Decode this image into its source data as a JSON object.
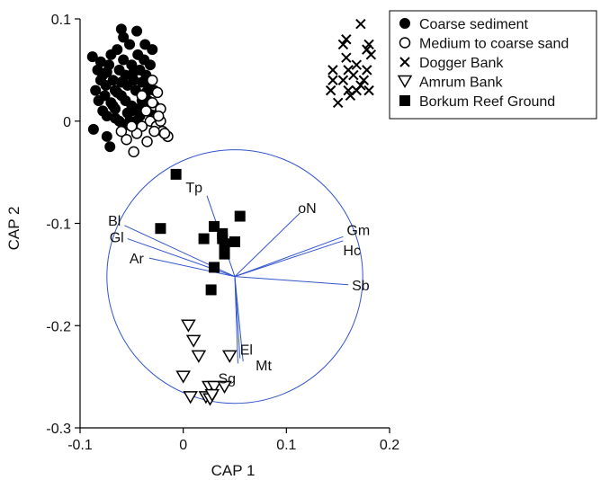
{
  "chart_data": {
    "type": "scatter",
    "xlabel": "CAP 1",
    "ylabel": "CAP 2",
    "xlim": [
      -0.1,
      0.2
    ],
    "ylim": [
      -0.3,
      0.1
    ],
    "x_ticks": [
      -0.1,
      0,
      0.1,
      0.2
    ],
    "x_tick_labels": [
      "-0.1",
      "0",
      "0.1",
      "0.2"
    ],
    "y_ticks": [
      -0.3,
      -0.2,
      -0.1,
      0,
      0.1
    ],
    "y_tick_labels": [
      "-0.3",
      "-0.2",
      "-0.1",
      "0",
      "0.1"
    ],
    "grid": false,
    "legend_position": "top-right",
    "series": [
      {
        "name": "Coarse sediment",
        "marker": "filled-circle",
        "color": "#000000",
        "points": [
          [
            -0.088,
            0.063
          ],
          [
            -0.083,
            0.05
          ],
          [
            -0.08,
            0.058
          ],
          [
            -0.078,
            0.045
          ],
          [
            -0.075,
            0.035
          ],
          [
            -0.072,
            0.055
          ],
          [
            -0.07,
            0.065
          ],
          [
            -0.068,
            0.04
          ],
          [
            -0.066,
            0.03
          ],
          [
            -0.064,
            0.07
          ],
          [
            -0.062,
            0.05
          ],
          [
            -0.06,
            0.025
          ],
          [
            -0.058,
            0.06
          ],
          [
            -0.056,
            0.045
          ],
          [
            -0.054,
            0.035
          ],
          [
            -0.052,
            0.075
          ],
          [
            -0.05,
            0.055
          ],
          [
            -0.048,
            0.04
          ],
          [
            -0.046,
            0.03
          ],
          [
            -0.044,
            0.065
          ],
          [
            -0.042,
            0.05
          ],
          [
            -0.04,
            0.02
          ],
          [
            -0.038,
            0.06
          ],
          [
            -0.036,
            0.045
          ],
          [
            -0.034,
            0.035
          ],
          [
            -0.032,
            0.055
          ],
          [
            -0.03,
            0.04
          ],
          [
            -0.028,
            0.03
          ],
          [
            -0.085,
            0.03
          ],
          [
            -0.082,
            0.02
          ],
          [
            -0.078,
            0.01
          ],
          [
            -0.074,
            0.005
          ],
          [
            -0.07,
            0.018
          ],
          [
            -0.066,
            0.012
          ],
          [
            -0.062,
            0.0
          ],
          [
            -0.058,
            -0.005
          ],
          [
            -0.054,
            0.008
          ],
          [
            -0.05,
            0.015
          ],
          [
            -0.046,
            0.0
          ],
          [
            -0.042,
            0.005
          ],
          [
            -0.038,
            0.012
          ],
          [
            -0.034,
            0.02
          ],
          [
            -0.087,
            -0.008
          ],
          [
            -0.074,
            -0.015
          ],
          [
            -0.066,
            0.003
          ],
          [
            -0.06,
            0.09
          ],
          [
            -0.045,
            0.088
          ],
          [
            -0.037,
            0.075
          ],
          [
            -0.03,
            0.07
          ],
          [
            -0.071,
            -0.025
          ],
          [
            -0.058,
            0.082
          ],
          [
            -0.05,
            0.01
          ],
          [
            -0.064,
            0.028
          ],
          [
            -0.056,
            0.02
          ],
          [
            -0.048,
            0.048
          ],
          [
            -0.04,
            0.038
          ],
          [
            -0.074,
            0.048
          ],
          [
            -0.036,
            0.028
          ],
          [
            -0.044,
            0.012
          ],
          [
            -0.068,
            0.015
          ],
          [
            -0.052,
            0.0
          ],
          [
            -0.08,
            0.04
          ],
          [
            -0.06,
            0.038
          ],
          [
            -0.032,
            0.01
          ],
          [
            -0.076,
            0.025
          ]
        ]
      },
      {
        "name": "Medium to coarse sand",
        "marker": "open-circle",
        "color": "#000000",
        "points": [
          [
            -0.03,
            0.04
          ],
          [
            -0.025,
            0.028
          ],
          [
            -0.028,
            0.015
          ],
          [
            -0.022,
            0.012
          ],
          [
            -0.032,
            0.0
          ],
          [
            -0.026,
            -0.005
          ],
          [
            -0.02,
            -0.01
          ],
          [
            -0.015,
            -0.015
          ],
          [
            -0.04,
            -0.005
          ],
          [
            -0.045,
            -0.012
          ],
          [
            -0.05,
            -0.005
          ],
          [
            -0.055,
            -0.018
          ],
          [
            -0.06,
            -0.01
          ],
          [
            -0.048,
            -0.03
          ],
          [
            -0.035,
            -0.02
          ],
          [
            -0.028,
            -0.01
          ],
          [
            -0.022,
            0.0
          ],
          [
            -0.024,
            0.005
          ],
          [
            -0.03,
            0.018
          ],
          [
            -0.036,
            0.01
          ],
          [
            -0.018,
            -0.012
          ],
          [
            -0.04,
            0.025
          ]
        ]
      },
      {
        "name": "Dogger Bank",
        "marker": "cross",
        "color": "#000000",
        "points": [
          [
            0.172,
            0.095
          ],
          [
            0.158,
            0.08
          ],
          [
            0.155,
            0.075
          ],
          [
            0.18,
            0.075
          ],
          [
            0.178,
            0.07
          ],
          [
            0.182,
            0.065
          ],
          [
            0.158,
            0.062
          ],
          [
            0.145,
            0.05
          ],
          [
            0.168,
            0.055
          ],
          [
            0.16,
            0.05
          ],
          [
            0.165,
            0.045
          ],
          [
            0.155,
            0.04
          ],
          [
            0.145,
            0.04
          ],
          [
            0.175,
            0.04
          ],
          [
            0.172,
            0.035
          ],
          [
            0.168,
            0.03
          ],
          [
            0.18,
            0.03
          ],
          [
            0.143,
            0.03
          ],
          [
            0.15,
            0.018
          ],
          [
            0.162,
            0.025
          ],
          [
            0.178,
            0.05
          ],
          [
            0.16,
            0.03
          ]
        ]
      },
      {
        "name": "Amrum Bank",
        "marker": "open-triangle-down",
        "color": "#000000",
        "points": [
          [
            0.005,
            -0.2
          ],
          [
            0.01,
            -0.215
          ],
          [
            0.015,
            -0.23
          ],
          [
            0.045,
            -0.23
          ],
          [
            0.0,
            -0.25
          ],
          [
            0.025,
            -0.26
          ],
          [
            0.03,
            -0.26
          ],
          [
            0.04,
            -0.26
          ],
          [
            0.007,
            -0.27
          ],
          [
            0.022,
            -0.27
          ],
          [
            0.026,
            -0.272
          ],
          [
            0.028,
            -0.268
          ]
        ]
      },
      {
        "name": "Borkum Reef Ground",
        "marker": "filled-square",
        "color": "#000000",
        "points": [
          [
            -0.007,
            -0.052
          ],
          [
            -0.022,
            -0.105
          ],
          [
            0.03,
            -0.103
          ],
          [
            0.055,
            -0.093
          ],
          [
            0.038,
            -0.11
          ],
          [
            0.02,
            -0.115
          ],
          [
            0.04,
            -0.12
          ],
          [
            0.05,
            -0.118
          ],
          [
            0.04,
            -0.13
          ],
          [
            0.03,
            -0.143
          ],
          [
            0.027,
            -0.165
          ],
          [
            0.038,
            -0.115
          ]
        ]
      }
    ],
    "circle": {
      "color": "#3355cc",
      "center": [
        0.05,
        -0.152
      ],
      "radius": 0.124
    },
    "vectors": [
      {
        "label": "Tp",
        "end": [
          0.023,
          -0.073
        ]
      },
      {
        "label": "oN",
        "end": [
          0.113,
          -0.09
        ]
      },
      {
        "label": "Bl",
        "end": [
          -0.057,
          -0.102
        ]
      },
      {
        "label": "Gl",
        "end": [
          -0.054,
          -0.115
        ]
      },
      {
        "label": "Ar",
        "end": [
          -0.033,
          -0.134
        ]
      },
      {
        "label": "Gm",
        "end": [
          0.155,
          -0.113
        ]
      },
      {
        "label": "Hc",
        "end": [
          0.155,
          -0.117
        ]
      },
      {
        "label": "Sb",
        "end": [
          0.16,
          -0.16
        ]
      },
      {
        "label": "El",
        "end": [
          0.055,
          -0.232
        ]
      },
      {
        "label": "Mt",
        "end": [
          0.058,
          -0.235
        ]
      },
      {
        "label": "Sg",
        "end": [
          0.053,
          -0.237
        ]
      }
    ]
  }
}
